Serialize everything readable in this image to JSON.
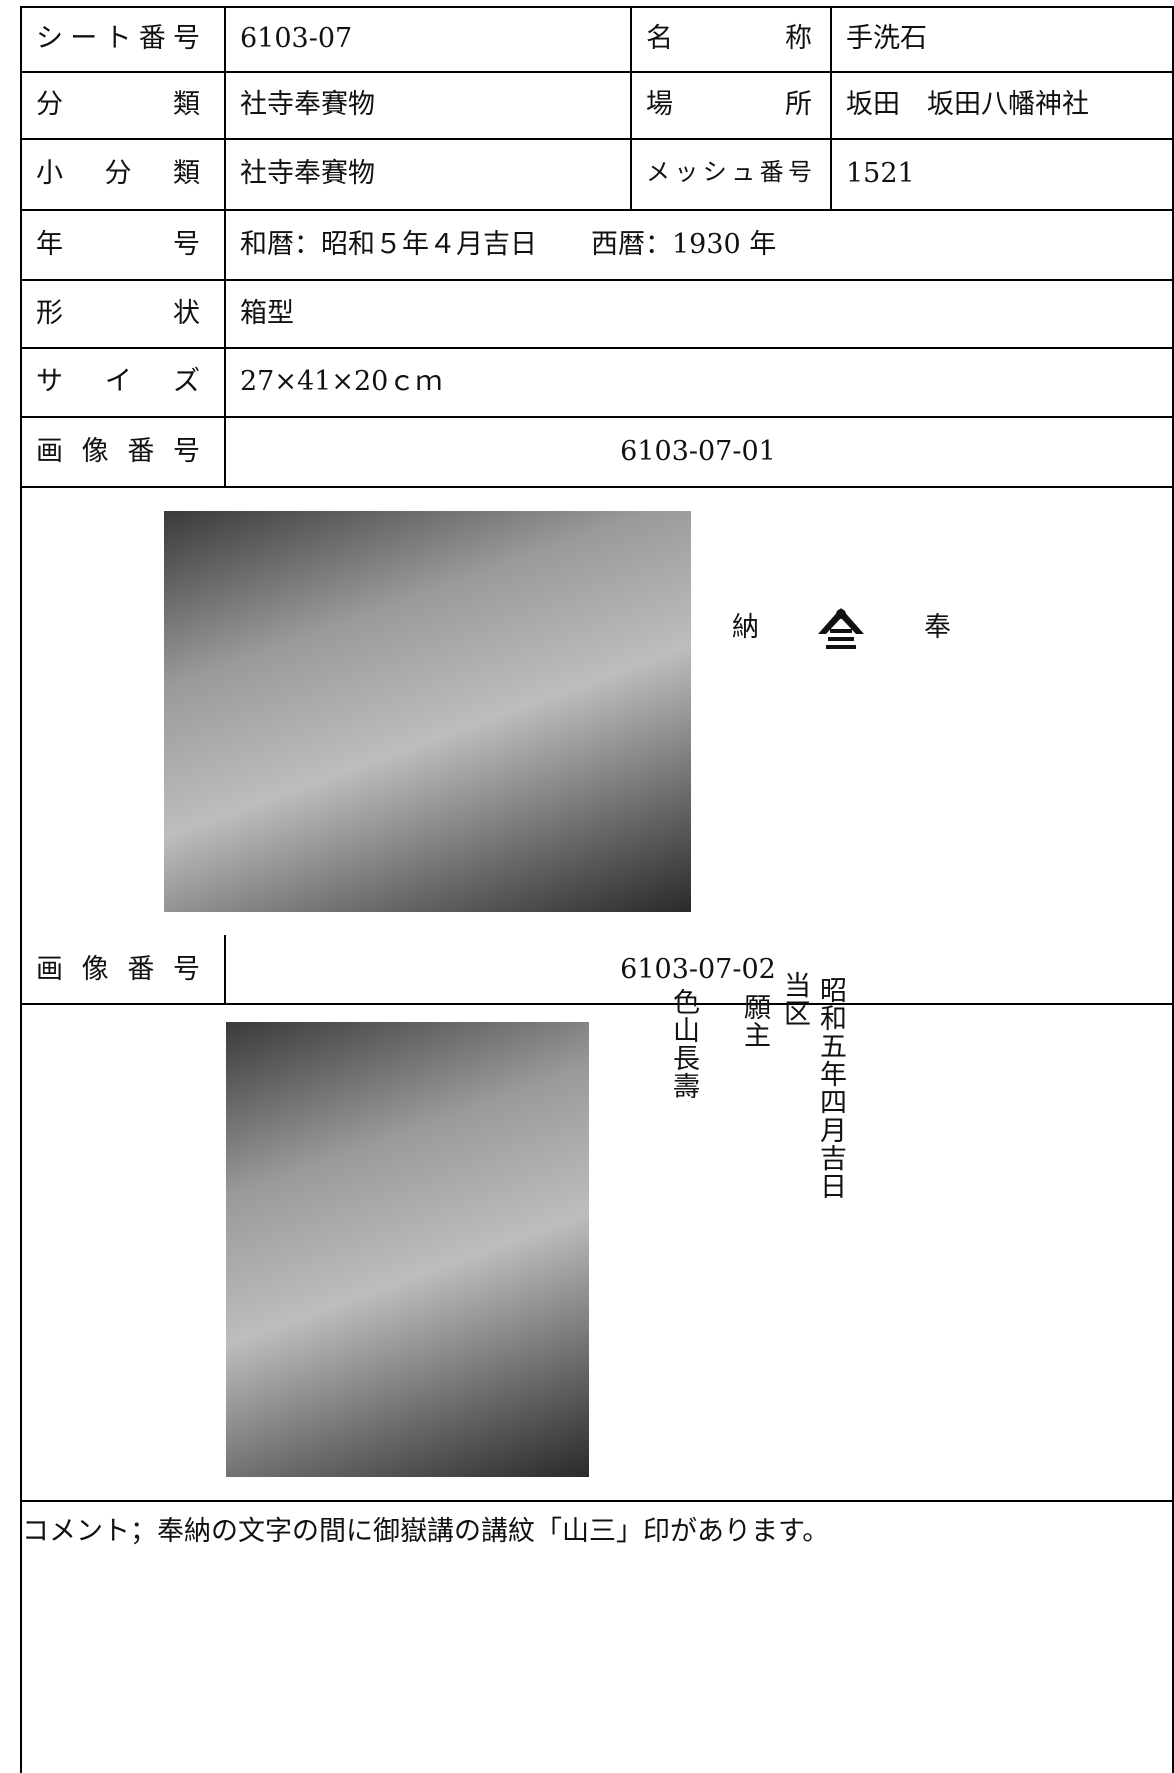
{
  "fields": [
    {
      "label": "シート番号",
      "value": "6103-07",
      "label2": "名称",
      "value2": "手洗石"
    },
    {
      "label": "分類",
      "value": "社寺奉賽物",
      "label2": "場所",
      "value2": "坂田　坂田八幡神社"
    },
    {
      "label": "小分類",
      "value": "社寺奉賽物",
      "label2": "メッシュ番号",
      "value2": "1521"
    },
    {
      "label": "年号",
      "value": "和暦：昭和５年４月吉日　　西暦：1930 年"
    },
    {
      "label": "形状",
      "value": "箱型"
    },
    {
      "label": "サイズ",
      "value": "27×41×20ｃｍ"
    }
  ],
  "images": [
    {
      "label": "画像番号",
      "number": "6103-07-01",
      "inscription": [
        "納",
        "奉"
      ]
    },
    {
      "label": "画像番号",
      "number": "6103-07-02",
      "inscription": [
        "昭和五年四月吉日",
        "当区",
        "願主",
        "色山長壽"
      ]
    }
  ],
  "comment": "コメント；奉納の文字の間に御嶽講の講紋「山三」印があります。"
}
